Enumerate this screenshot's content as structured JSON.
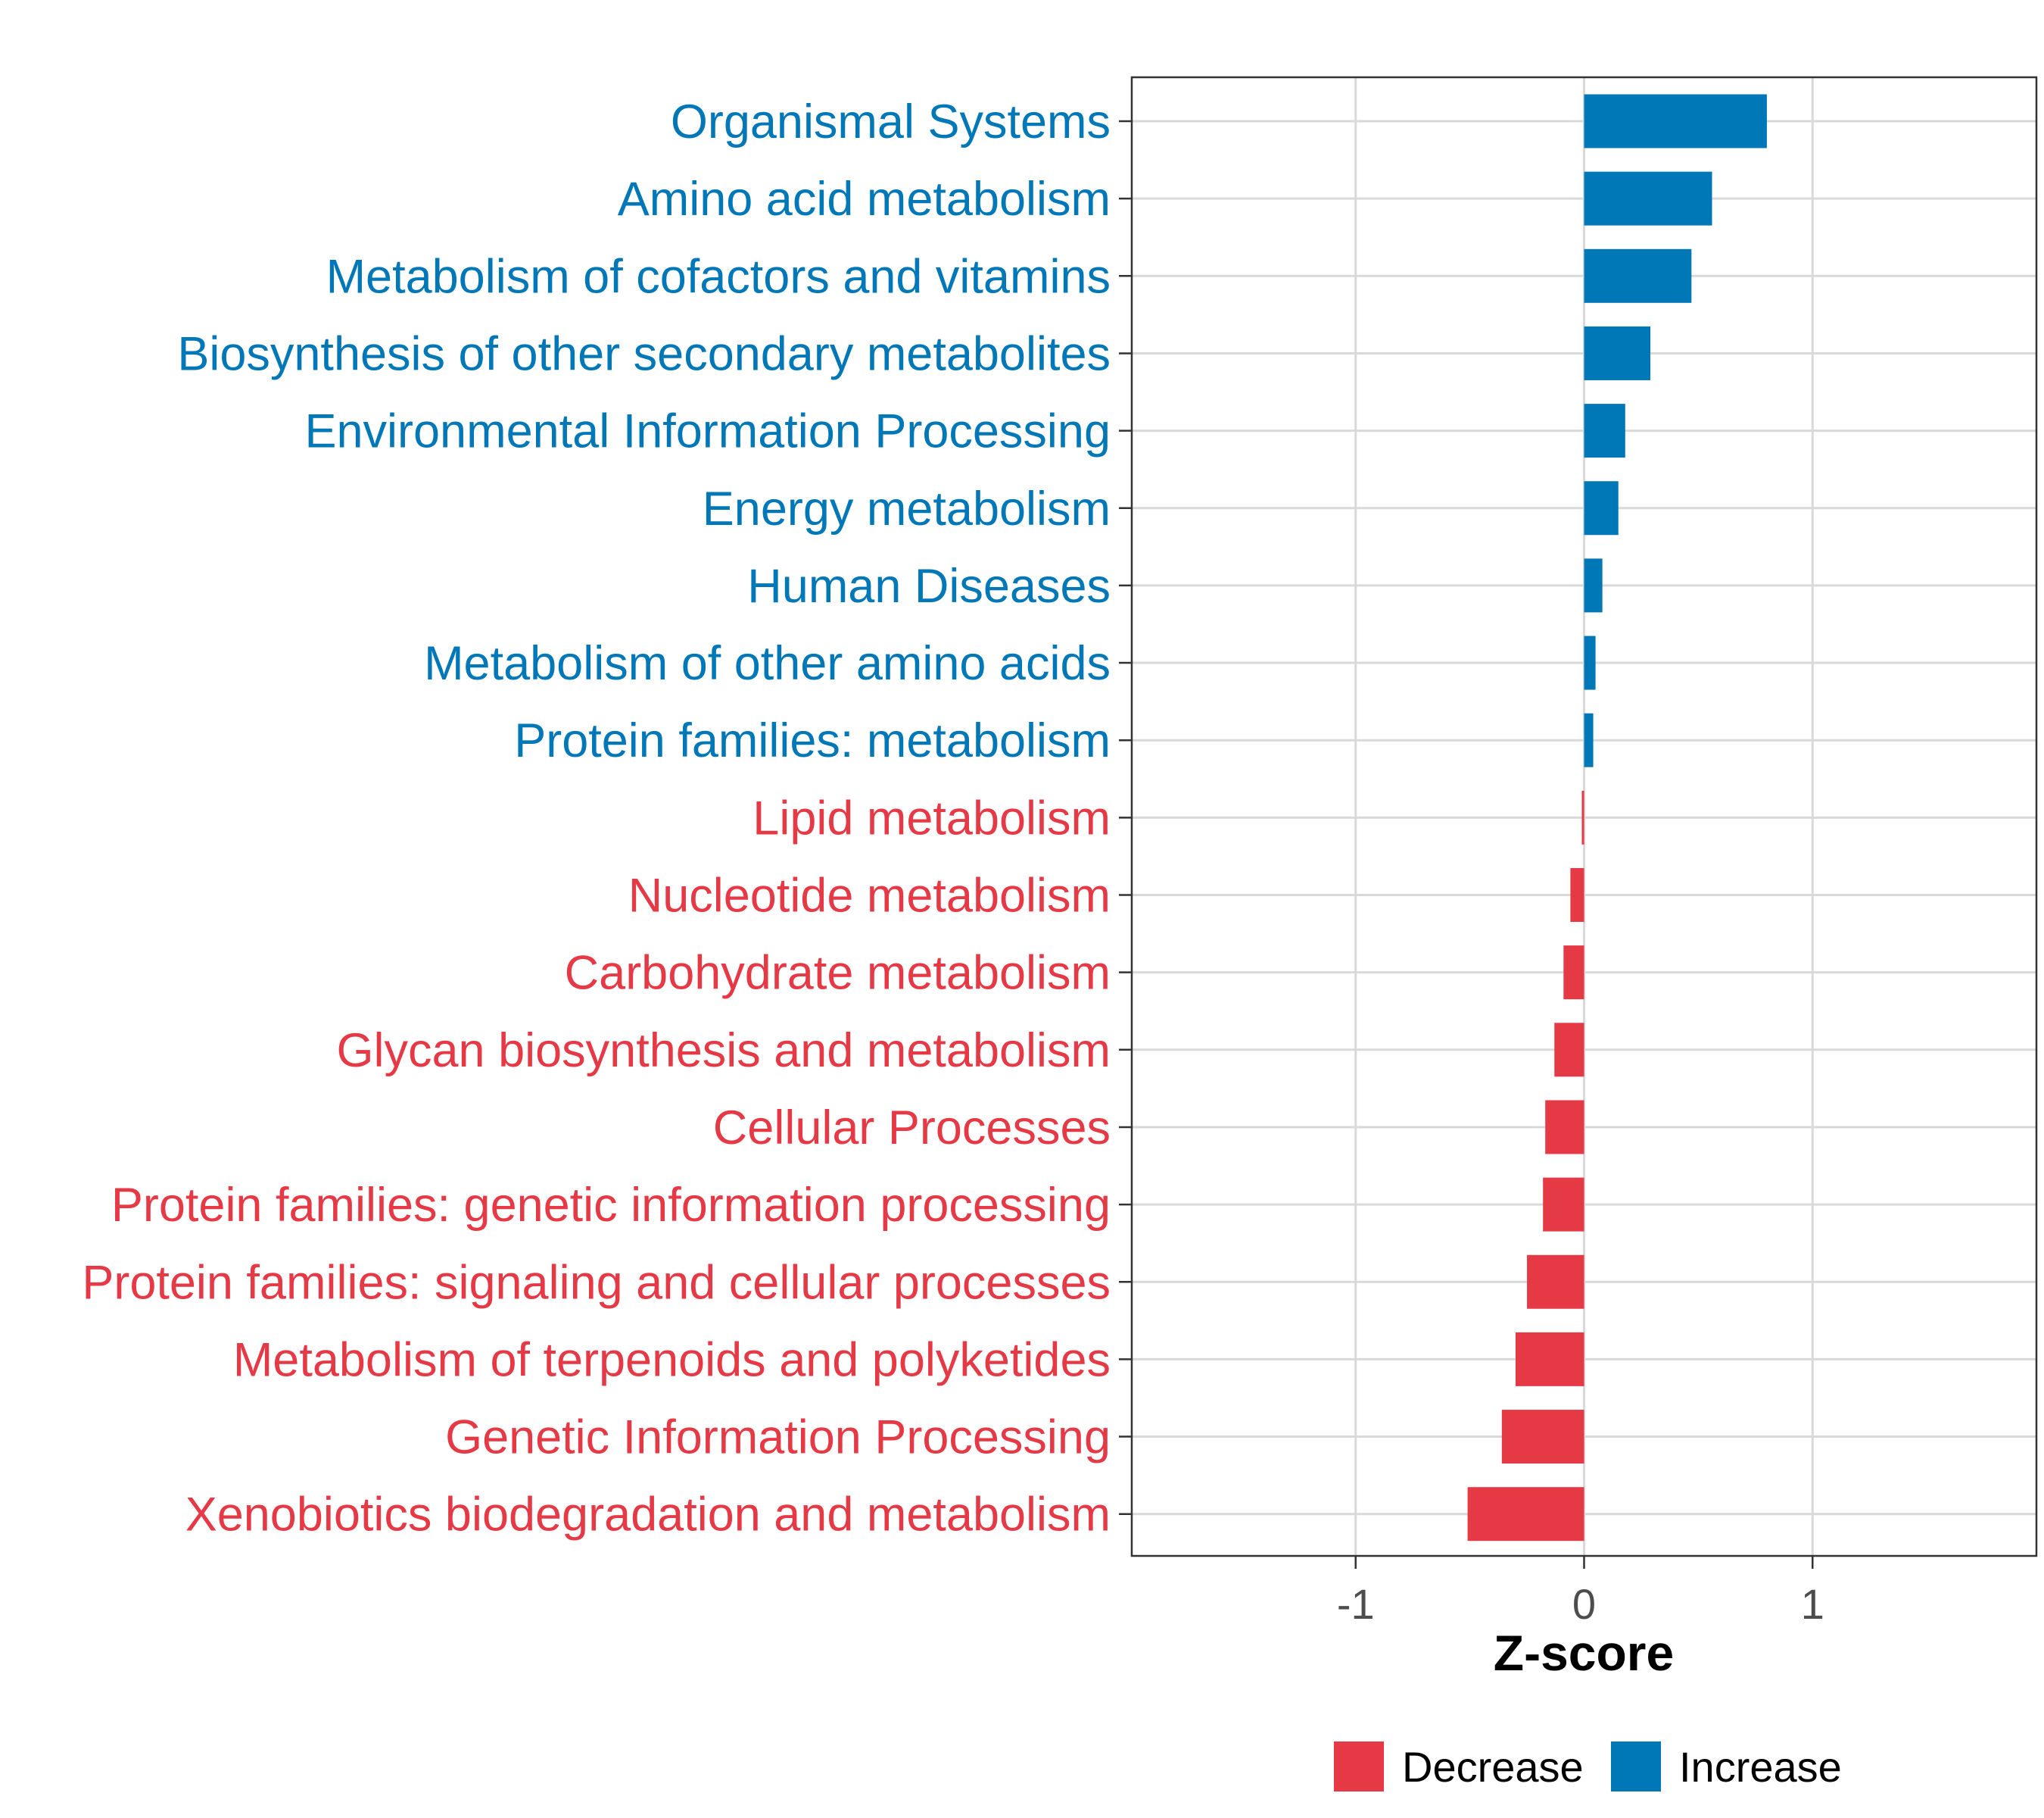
{
  "chart_data": {
    "type": "bar",
    "orientation": "horizontal",
    "title": "",
    "xlabel": "Z-score",
    "ylabel": "",
    "xlim": [
      -1.98,
      1.98
    ],
    "x_ticks": [
      {
        "value": -1,
        "label": "-1"
      },
      {
        "value": 0,
        "label": "0"
      },
      {
        "value": 1,
        "label": "1"
      }
    ],
    "grid": true,
    "categories": [
      "Organismal Systems",
      "Amino acid metabolism",
      "Metabolism of cofactors and vitamins",
      "Biosynthesis of other secondary metabolites",
      "Environmental Information Processing",
      "Energy metabolism",
      "Human Diseases",
      "Metabolism of other amino acids",
      "Protein families: metabolism",
      "Lipid metabolism",
      "Nucleotide metabolism",
      "Carbohydrate metabolism",
      "Glycan biosynthesis and metabolism",
      "Cellular Processes",
      "Protein families: genetic information processing",
      "Protein families: signaling and cellular processes",
      "Metabolism of terpenoids and polyketides",
      "Genetic Information Processing",
      "Xenobiotics biodegradation and metabolism"
    ],
    "values": [
      0.8,
      0.56,
      0.47,
      0.29,
      0.18,
      0.15,
      0.08,
      0.05,
      0.04,
      -0.01,
      -0.06,
      -0.09,
      -0.13,
      -0.17,
      -0.18,
      -0.25,
      -0.3,
      -0.36,
      -0.51
    ],
    "groups": [
      "Increase",
      "Increase",
      "Increase",
      "Increase",
      "Increase",
      "Increase",
      "Increase",
      "Increase",
      "Increase",
      "Decrease",
      "Decrease",
      "Decrease",
      "Decrease",
      "Decrease",
      "Decrease",
      "Decrease",
      "Decrease",
      "Decrease",
      "Decrease"
    ],
    "legend": {
      "position": "bottom",
      "entries": [
        {
          "label": "Decrease",
          "color": "#e63946"
        },
        {
          "label": "Increase",
          "color": "#0077b6"
        }
      ]
    },
    "colors": {
      "Increase": "#0077b6",
      "Decrease": "#e63946",
      "grid": "#d9d9d9",
      "panel_border": "#333333"
    }
  }
}
